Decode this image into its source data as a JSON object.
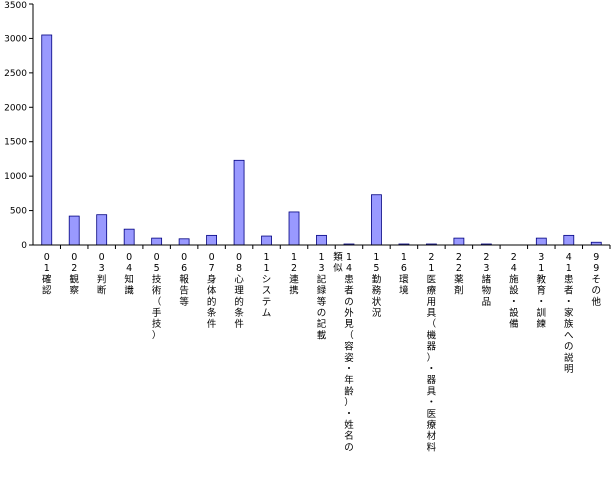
{
  "chart_data": {
    "type": "bar",
    "title": "",
    "xlabel": "",
    "ylabel": "",
    "ylim": [
      0,
      3500
    ],
    "yticks": [
      0,
      500,
      1000,
      1500,
      2000,
      2500,
      3000,
      3500
    ],
    "grid": false,
    "legend": "none",
    "colors": {
      "bar_fill": "#9999ff",
      "bar_stroke": "#000080",
      "axis": "#000000",
      "background": "#ffffff"
    },
    "categories": [
      "01確認",
      "02観察",
      "03判断",
      "04知識",
      "05技術（手技）",
      "06報告等",
      "07身体的条件",
      "08心理的条件",
      "11システム",
      "12連携",
      "13記録等の記載",
      "14患者の外見（容姿・年齢）・姓名の類似",
      "15勤務状況",
      "16環境",
      "21医療用具（機器）・器具・医療材料",
      "22薬剤",
      "23諸物品",
      "24施設・設備",
      "31教育・訓練",
      "41患者・家族への説明",
      "99その他"
    ],
    "values": [
      3050,
      420,
      440,
      230,
      100,
      90,
      140,
      1230,
      130,
      480,
      140,
      10,
      730,
      5,
      5,
      100,
      5,
      0,
      100,
      140,
      40
    ]
  }
}
